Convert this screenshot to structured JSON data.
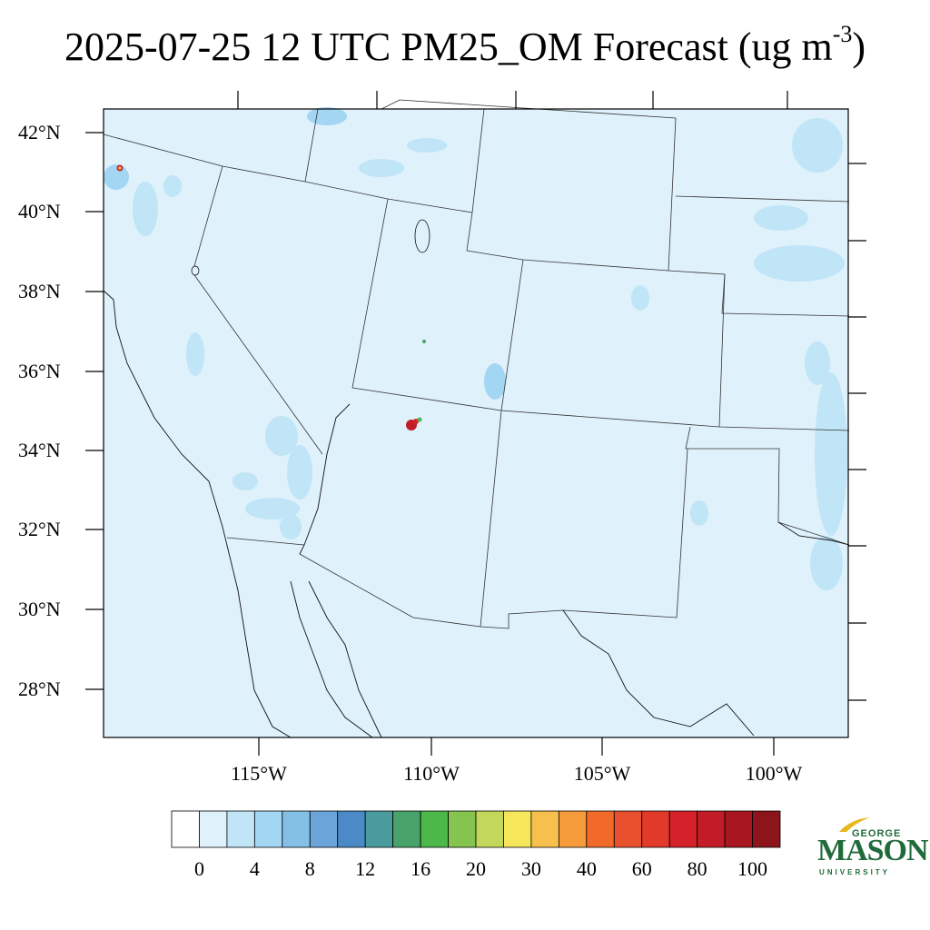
{
  "title": {
    "main": "2025-07-25 12 UTC PM25_OM Forecast (ug m",
    "exponent": "-3",
    "close": ")"
  },
  "map": {
    "region": "Southwestern United States",
    "field_color": "#dff1fb",
    "lat_labels": [
      "42°N",
      "40°N",
      "38°N",
      "36°N",
      "34°N",
      "32°N",
      "30°N",
      "28°N"
    ],
    "lon_labels": [
      "115°W",
      "110°W",
      "105°W",
      "100°W"
    ]
  },
  "colorbar": {
    "labels": [
      "0",
      "4",
      "8",
      "12",
      "16",
      "20",
      "30",
      "40",
      "60",
      "80",
      "100"
    ],
    "colors": [
      "#ffffff",
      "#dff1fb",
      "#bfe5f7",
      "#a3d6f3",
      "#84c0e6",
      "#6aa4d8",
      "#4b89c7",
      "#4a9b9e",
      "#48a36b",
      "#4cb84a",
      "#85c44f",
      "#c3d85a",
      "#f6e65a",
      "#f7c04c",
      "#f69b3c",
      "#f26a2a",
      "#e9512e",
      "#e13a2a",
      "#d42029",
      "#c11c27",
      "#a8161f",
      "#8e141b"
    ]
  },
  "logo": {
    "line1": "GEORGE",
    "line2": "MASON",
    "line3": "UNIVERSITY"
  }
}
